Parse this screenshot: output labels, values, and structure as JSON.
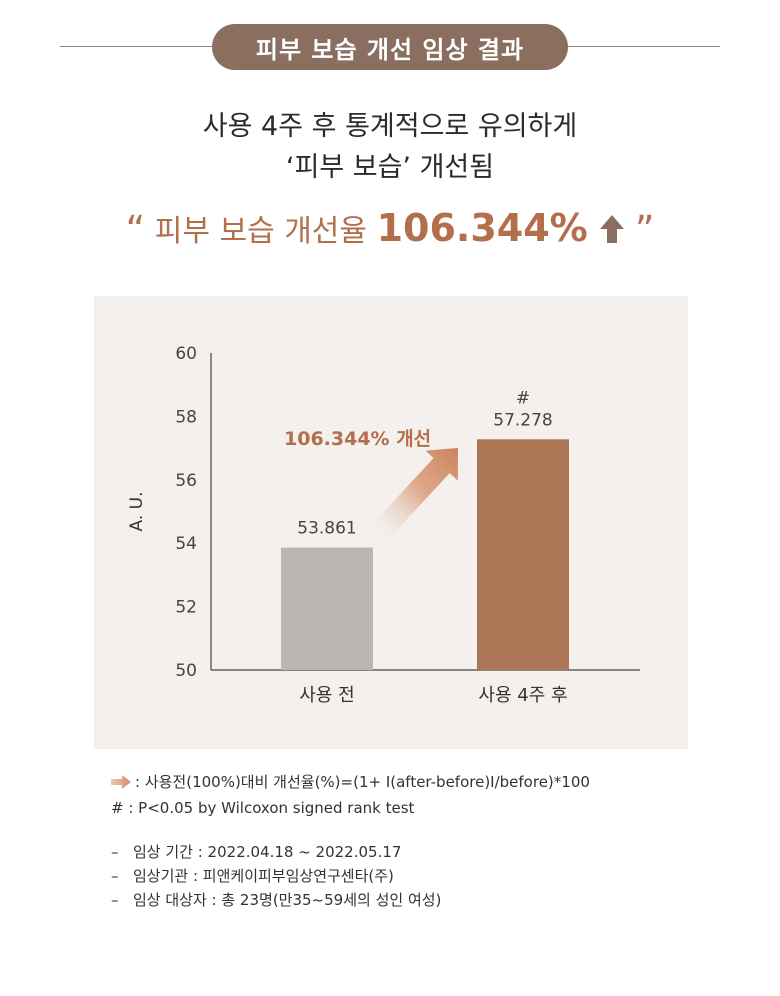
{
  "header": {
    "title": "피부 보습 개선 임상 결과"
  },
  "headline": {
    "line1": "사용 4주 후 통계적으로 유의하게",
    "line2": "‘피부 보습’ 개선됨"
  },
  "highlight": {
    "open_quote": "“",
    "label": "피부 보습 개선율",
    "value": "106.344%",
    "close_quote": "”"
  },
  "colors": {
    "accent": "#b36f4b",
    "pill": "#8a6e5f",
    "bar_before": "#bab6b2",
    "bar_after": "#ac7556",
    "panel": "#f3f0ee"
  },
  "chart_data": {
    "type": "bar",
    "categories": [
      "사용 전",
      "사용 4주 후"
    ],
    "values": [
      53.861,
      57.278
    ],
    "value_labels": [
      "53.861",
      "57.278"
    ],
    "significance": [
      "",
      "#"
    ],
    "ylabel": "A. U.",
    "ylim": [
      50,
      60
    ],
    "yticks": [
      50,
      52,
      54,
      56,
      58,
      60
    ],
    "grid": false,
    "annotation": "106.344% 개선"
  },
  "notes": {
    "formula": ": 사용전(100%)대비 개선율(%)=(1+ I(after-before)I/before)*100",
    "significance": "# : P<0.05 by Wilcoxon signed rank test"
  },
  "info": {
    "dash": "–",
    "items": [
      "임상 기간 : 2022.04.18 ~ 2022.05.17",
      "임상기관 : 피앤케이피부임상연구센타(주)",
      "임상 대상자 : 총 23명(만35~59세의 성인 여성)"
    ]
  }
}
